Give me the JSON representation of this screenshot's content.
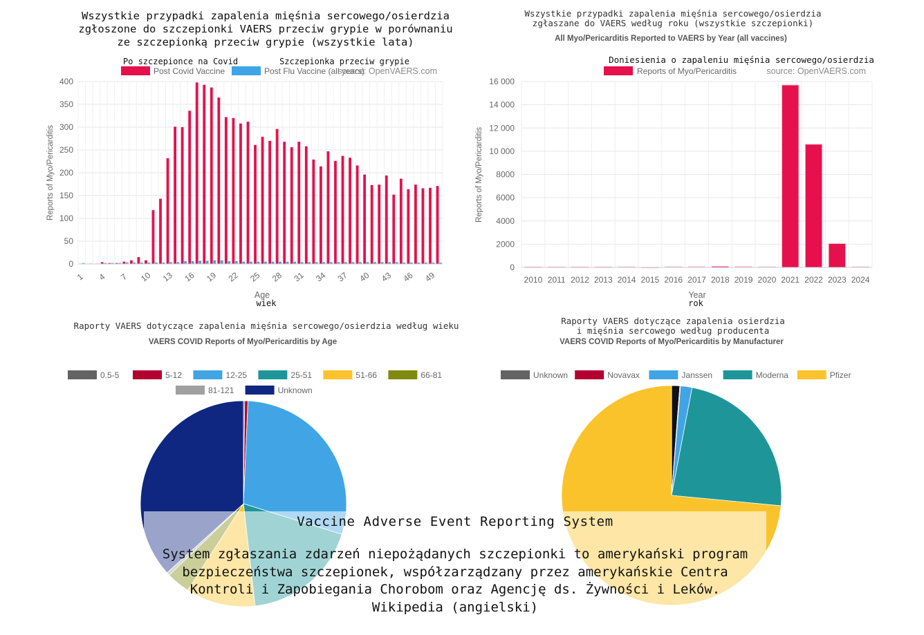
{
  "colors": {
    "covid": "#e5104c",
    "flu": "#3fa4e8",
    "grid": "#e6e6e6",
    "axis": "#999999",
    "tick_text": "#666666",
    "title_text": "#111111",
    "subtitle_text": "#555555",
    "pie_colors": [
      "#636363",
      "#b40030",
      "#41a5e5",
      "#1e9699",
      "#fbc32b",
      "#808a0e",
      "#a0a0a0",
      "#0f2780"
    ],
    "manu_colors": [
      "#111111",
      "#b40030",
      "#41a5e5",
      "#1e9699",
      "#fbc32b"
    ]
  },
  "chart_data": [
    {
      "id": "age-bar",
      "type": "bar",
      "title_pl": [
        "Wszystkie przypadki zapalenia mięśnia sercowego/osierdzia",
        "zgłoszone do szczepionki VAERS przeciw grypie w porównaniu",
        "ze szczepionką przeciw grypie (wszystkie lata)"
      ],
      "legend_pl": [
        "Po szczepionce na Covid",
        "Szczepionka przeciw grypie"
      ],
      "series": [
        {
          "name": "Post Covid Vaccine",
          "color_key": "covid",
          "values": [
            0,
            0,
            0,
            4,
            2,
            2,
            5,
            8,
            15,
            8,
            118,
            143,
            232,
            301,
            300,
            336,
            398,
            393,
            387,
            365,
            322,
            320,
            308,
            312,
            261,
            279,
            270,
            296,
            268,
            256,
            268,
            258,
            229,
            214,
            247,
            226,
            237,
            233,
            216,
            196,
            173,
            174,
            194,
            152,
            187,
            164,
            174,
            166,
            167,
            171
          ]
        },
        {
          "name": "Post Flu Vaccine (all years)",
          "color_key": "flu",
          "values": [
            2,
            1,
            1,
            2,
            2,
            2,
            3,
            3,
            3,
            3,
            3,
            3,
            4,
            4,
            6,
            6,
            7,
            7,
            8,
            8,
            6,
            6,
            5,
            5,
            5,
            5,
            5,
            5,
            5,
            5,
            4,
            4,
            4,
            4,
            4,
            4,
            4,
            4,
            4,
            4,
            4,
            4,
            4,
            4,
            3,
            3,
            3,
            3,
            3,
            3
          ]
        }
      ],
      "x": [
        1,
        2,
        3,
        4,
        5,
        6,
        7,
        8,
        9,
        10,
        11,
        12,
        13,
        14,
        15,
        16,
        17,
        18,
        19,
        20,
        21,
        22,
        23,
        24,
        25,
        26,
        27,
        28,
        29,
        30,
        31,
        32,
        33,
        34,
        35,
        36,
        37,
        38,
        39,
        40,
        41,
        42,
        43,
        44,
        45,
        46,
        47,
        48,
        49,
        50
      ],
      "x_ticks": [
        "1",
        "4",
        "7",
        "10",
        "13",
        "16",
        "19",
        "22",
        "25",
        "28",
        "31",
        "34",
        "37",
        "40",
        "43",
        "46",
        "49"
      ],
      "x_tick_values": [
        1,
        4,
        7,
        10,
        13,
        16,
        19,
        22,
        25,
        28,
        31,
        34,
        37,
        40,
        43,
        46,
        49
      ],
      "y_ticks": [
        "0",
        "50",
        "100",
        "150",
        "200",
        "250",
        "300",
        "350",
        "400"
      ],
      "ylim": [
        0,
        400
      ],
      "xlabel": "Age",
      "xlabel_pl": "wiek",
      "ylabel": "Reports of Myo/Pericarditis",
      "source": "source: OpenVAERS.com",
      "grid": true,
      "legend_placement": "top"
    },
    {
      "id": "year-bar",
      "type": "bar",
      "title_pl": [
        "Wszystkie przypadki zapalenia mięśnia sercowego/osierdzia",
        "zgłaszane do VAERS według roku (wszystkie szczepionki)"
      ],
      "title": "All Myo/Pericarditis Reported to VAERS by Year (all vaccines)",
      "legend_pl": "Doniesienia o zapaleniu mięśnia sercowego/osierdzia",
      "categories": [
        "2010",
        "2011",
        "2012",
        "2013",
        "2014",
        "2015",
        "2016",
        "2017",
        "2018",
        "2019",
        "2020",
        "2021",
        "2022",
        "2023",
        "2024"
      ],
      "series": [
        {
          "name": "Reports of Myo/Pericarditis",
          "color_key": "covid",
          "values": [
            40,
            42,
            40,
            40,
            45,
            10,
            55,
            60,
            95,
            65,
            50,
            15700,
            10600,
            2050,
            50
          ]
        }
      ],
      "y_ticks": [
        "0",
        "2000",
        "4000",
        "6000",
        "8000",
        "10 000",
        "12 000",
        "14 000",
        "16 000"
      ],
      "ylim": [
        0,
        16000
      ],
      "xlabel": "Year",
      "xlabel_pl": "rok",
      "ylabel": "Reports of Myo/Pericarditis",
      "source": "source: OpenVAERS.com",
      "grid": true,
      "legend_placement": "top"
    },
    {
      "id": "age-pie",
      "type": "pie",
      "title_pl": "Raporty VAERS dotyczące zapalenia mięśnia sercowego/osierdzia według wieku",
      "title": "VAERS COVID Reports of Myo/Pericarditis by Age",
      "labels": [
        "0.5-5",
        "5-12",
        "12-25",
        "25-51",
        "51-66",
        "66-81",
        "81-121",
        "Unknown"
      ],
      "values": [
        0.2,
        0.5,
        29.1,
        18.4,
        10.9,
        3.7,
        0.5,
        36.7
      ],
      "legend_placement": "top"
    },
    {
      "id": "manufacturer-pie",
      "type": "pie",
      "title_pl": [
        "Raporty VAERS dotyczące zapalenia osierdzia",
        "i mięśnia sercowego według producenta"
      ],
      "title": "VAERS COVID Reports of Myo/Pericarditis by Manufacturer",
      "labels": [
        "Unknown",
        "Novavax",
        "Janssen",
        "Moderna",
        "Pfizer"
      ],
      "values": [
        1.2,
        0.1,
        1.7,
        23.5,
        73.5
      ],
      "legend_placement": "top"
    }
  ],
  "overlay": {
    "title": "Vaccine Adverse Event Reporting System",
    "body": "System zgłaszania zdarzeń niepożądanych szczepionki to amerykański program bezpieczeństwa szczepionek, współzarządzany przez amerykańskie Centra Kontroli i Zapobiegania Chorobom oraz Agencję ds. Żywności i Leków. Wikipedia (angielski)"
  }
}
